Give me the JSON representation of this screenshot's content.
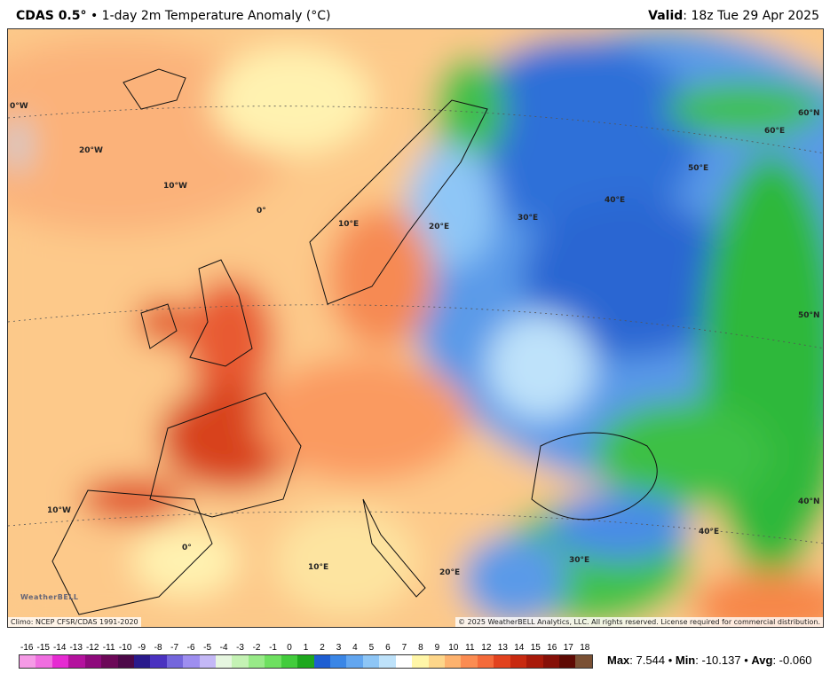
{
  "header": {
    "model": "CDAS 0.5°",
    "title": "1-day 2m Temperature Anomaly (°C)",
    "valid_label": "Valid",
    "valid_time": "18z Tue 29 Apr 2025"
  },
  "map": {
    "grid_labels": [
      "0°W",
      "20°W",
      "10°W",
      "0°",
      "10°E",
      "20°E",
      "30°E",
      "40°E",
      "50°E",
      "60°E",
      "60°N",
      "50°N",
      "40°N",
      "10°W",
      "0°",
      "10°E",
      "20°E",
      "30°E",
      "40°E"
    ],
    "logo": "WeatherBELL"
  },
  "footer": {
    "climo": "Climo: NCEP CFSR/CDAS 1991-2020",
    "copyright": "© 2025 WeatherBELL Analytics, LLC. All rights reserved. License required for commercial distribution."
  },
  "colorbar": {
    "labels": [
      "-16",
      "-15",
      "-14",
      "-13",
      "-12",
      "-11",
      "-10",
      "-9",
      "-8",
      "-7",
      "-6",
      "-5",
      "-4",
      "-3",
      "-2",
      "-1",
      "0",
      "1",
      "2",
      "3",
      "4",
      "5",
      "6",
      "7",
      "8",
      "9",
      "10",
      "11",
      "12",
      "13",
      "14",
      "15",
      "16",
      "17",
      "18"
    ],
    "colors": [
      "#f59ae6",
      "#f06ee0",
      "#e62ad2",
      "#b4129e",
      "#8e0a7c",
      "#6c0858",
      "#4c0848",
      "#2a1a8c",
      "#4a32c0",
      "#7466dc",
      "#9e8ef0",
      "#c4b8f6",
      "#e6f6e0",
      "#c4f2b4",
      "#98ea88",
      "#6ee060",
      "#42cc3c",
      "#1ea81e",
      "#1e5ed2",
      "#3a86e6",
      "#62a6f0",
      "#8ec6f6",
      "#bee2fa",
      "#ffffff",
      "#fff6a8",
      "#fdd68a",
      "#fdb26e",
      "#fb8c52",
      "#f46a3a",
      "#e2421e",
      "#c82a10",
      "#a81a0a",
      "#861008",
      "#5e0a04",
      "#7a5034"
    ],
    "stats": {
      "max_label": "Max",
      "max": "7.544",
      "min_label": "Min",
      "min": "-10.137",
      "avg_label": "Avg",
      "avg": "-0.060"
    }
  }
}
